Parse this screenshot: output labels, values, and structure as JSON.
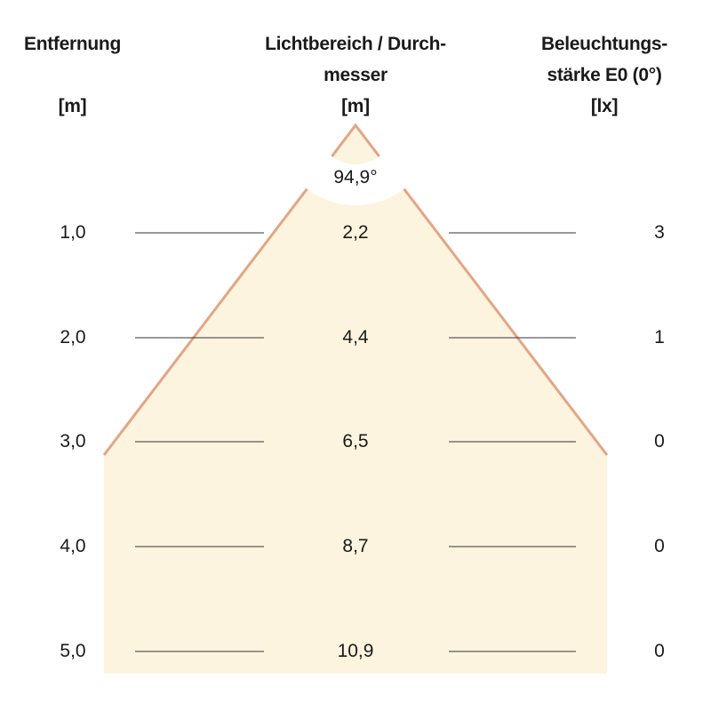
{
  "headers": {
    "distance": {
      "line1": "Entfernung",
      "unit": "[m]"
    },
    "diameter": {
      "line1": "Lichtbereich / Durch-",
      "line2": "messer",
      "unit": "[m]"
    },
    "illuminance": {
      "line1": "Beleuchtungs-",
      "line2": "stärke E0 (0°)",
      "unit": "[lx]"
    }
  },
  "beam_angle": "94,9°",
  "rows": [
    {
      "distance": "1,0",
      "diameter": "2,2",
      "illuminance": "3"
    },
    {
      "distance": "2,0",
      "diameter": "4,4",
      "illuminance": "1"
    },
    {
      "distance": "3,0",
      "diameter": "6,5",
      "illuminance": "0"
    },
    {
      "distance": "4,0",
      "diameter": "8,7",
      "illuminance": "0"
    },
    {
      "distance": "5,0",
      "diameter": "10,9",
      "illuminance": "0"
    }
  ],
  "colors": {
    "cone_fill": "#fcf4df",
    "cone_edge": "#e3a585",
    "row_line": "#333333"
  }
}
